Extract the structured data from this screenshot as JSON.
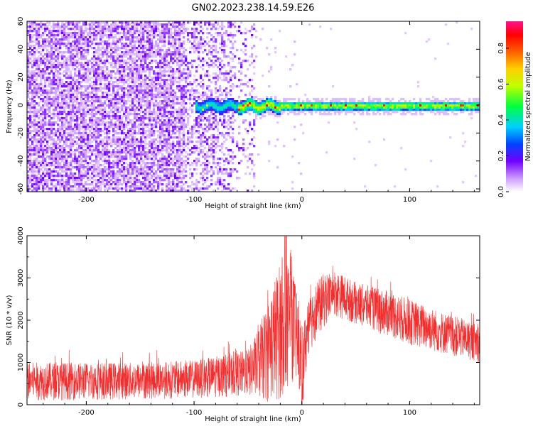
{
  "title": "GN02.2023.238.14.59.E26",
  "chart_data": [
    {
      "type": "heatmap",
      "xlabel": "Height of straight line (km)",
      "ylabel": "Frequency (Hz)",
      "xlim": [
        -255,
        165
      ],
      "ylim": [
        -62,
        60
      ],
      "x_ticks": [
        -200,
        -100,
        0,
        100
      ],
      "y_ticks": [
        -60,
        -40,
        -20,
        0,
        20,
        40,
        60
      ],
      "colorbar": {
        "label": "Normalized spectral amplitude",
        "range": [
          0,
          0.95
        ],
        "ticks": [
          0.0,
          0.2,
          0.4,
          0.6,
          0.8
        ],
        "tick_labels": [
          "0.0",
          "0.2",
          "0.4",
          "0.6",
          "0.8"
        ],
        "colormap": "hsv-like (white → purple → blue → cyan → green → yellow → orange → red → pink)"
      },
      "features": {
        "noise_region_x": [
          -255,
          -45
        ],
        "noise_amplitude": 0.1,
        "signal_band_center_hz": 0,
        "signal_band_halfwidth_hz": 3,
        "signal_start_x": -100,
        "signal_amplitude_range": [
          0.2,
          0.9
        ]
      }
    },
    {
      "type": "line",
      "xlabel": "Height of straight line (km)",
      "ylabel": "SNR (10 * v/v)",
      "xlim": [
        -255,
        165
      ],
      "ylim": [
        0,
        4000
      ],
      "x_ticks": [
        -200,
        -100,
        0,
        100
      ],
      "y_ticks": [
        0,
        1000,
        2000,
        3000,
        4000
      ],
      "color": "#f03030",
      "envelope": {
        "x": [
          -255,
          -150,
          -100,
          -50,
          -40,
          -30,
          -20,
          -10,
          0,
          10,
          20,
          30,
          50,
          80,
          100,
          130,
          165
        ],
        "low": [
          100,
          120,
          150,
          200,
          100,
          50,
          100,
          600,
          200,
          1400,
          1800,
          2100,
          1900,
          1600,
          1400,
          1200,
          1000
        ],
        "high": [
          1000,
          1000,
          1050,
          1300,
          1800,
          2600,
          3400,
          3600,
          1800,
          2800,
          3100,
          3200,
          2900,
          2700,
          2500,
          2200,
          1900
        ]
      }
    }
  ]
}
